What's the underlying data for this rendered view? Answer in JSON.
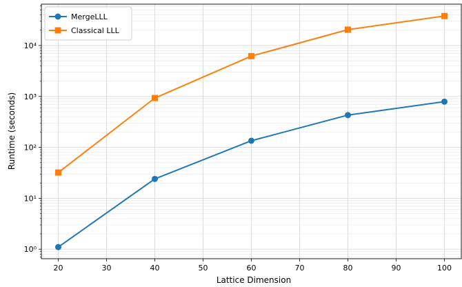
{
  "chart_data": {
    "type": "line",
    "xlabel": "Lattice Dimension",
    "ylabel": "Runtime (seconds)",
    "x": [
      20,
      40,
      60,
      80,
      100
    ],
    "xticks": [
      20,
      30,
      40,
      50,
      60,
      70,
      80,
      90,
      100
    ],
    "xlim": [
      16.5,
      103.5
    ],
    "y_scale": "log",
    "ylim": [
      0.65,
      65000
    ],
    "yticks": [
      {
        "value": 1,
        "label": "10⁰"
      },
      {
        "value": 10,
        "label": "10¹"
      },
      {
        "value": 100,
        "label": "10²"
      },
      {
        "value": 1000,
        "label": "10³"
      },
      {
        "value": 10000,
        "label": "10⁴"
      }
    ],
    "grid": true,
    "legend_position": "top-left",
    "series": [
      {
        "name": "MergeLLL",
        "color": "#1f77b4",
        "marker": "circle",
        "values": [
          1.1,
          24,
          135,
          430,
          790
        ]
      },
      {
        "name": "Classical LLL",
        "color": "#ff7f0e",
        "marker": "square",
        "values": [
          32,
          930,
          6200,
          20500,
          38000
        ]
      }
    ]
  }
}
